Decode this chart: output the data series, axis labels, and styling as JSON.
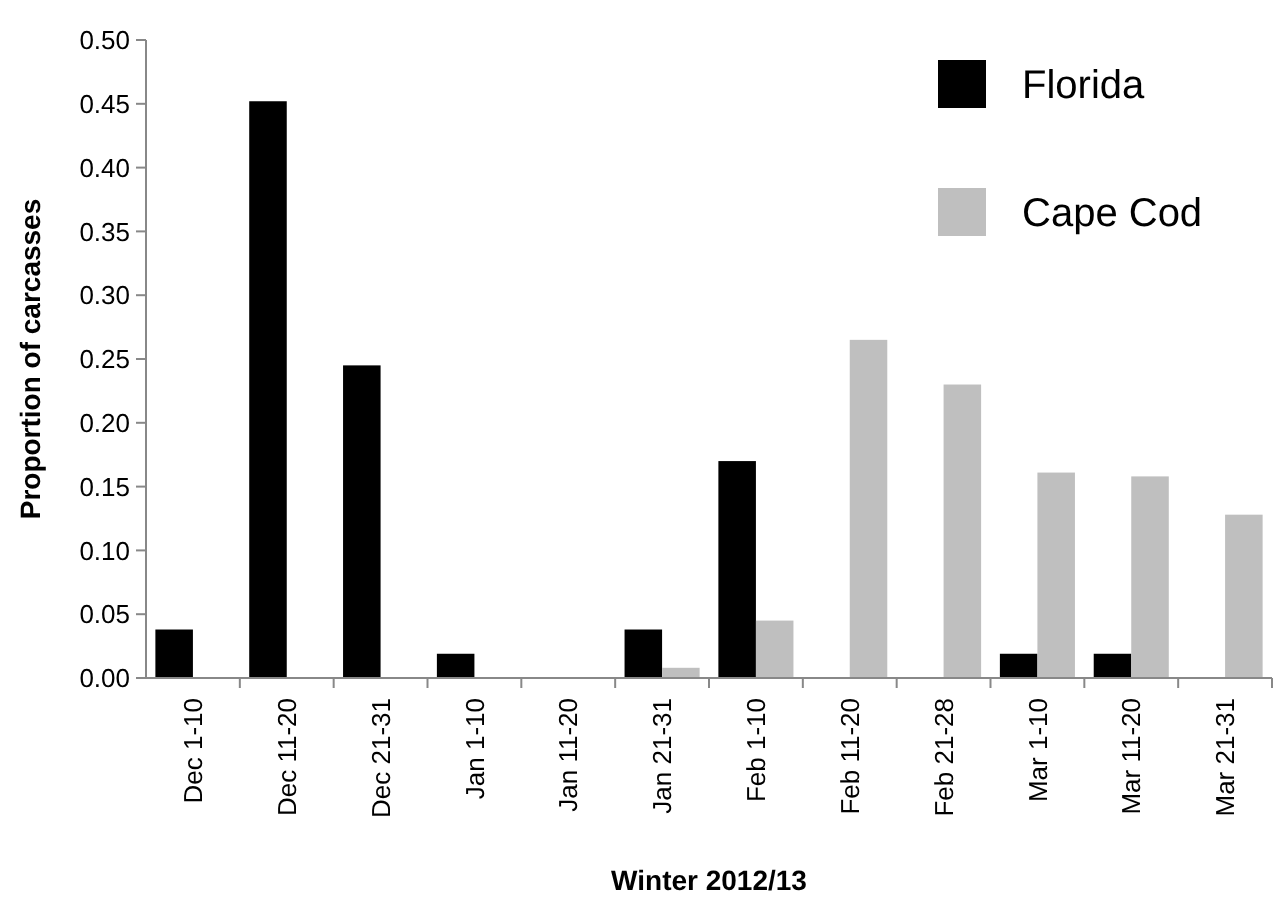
{
  "chart_data": {
    "type": "bar",
    "xlabel": "Winter 2012/13",
    "ylabel": "Proportion of carcasses",
    "categories": [
      "Dec 1-10",
      "Dec 11-20",
      "Dec 21-31",
      "Jan 1-10",
      "Jan 11-20",
      "Jan 21-31",
      "Feb 1-10",
      "Feb 11-20",
      "Feb 21-28",
      "Mar 1-10",
      "Mar 11-20",
      "Mar 21-31"
    ],
    "series": [
      {
        "name": "Florida",
        "color": "#000000",
        "values": [
          0.038,
          0.452,
          0.245,
          0.019,
          0,
          0.038,
          0.17,
          0,
          0,
          0.019,
          0.019,
          0
        ]
      },
      {
        "name": "Cape Cod",
        "color": "#bfbfbf",
        "values": [
          0,
          0,
          0,
          0,
          0,
          0.008,
          0.045,
          0.265,
          0.23,
          0.161,
          0.158,
          0.128
        ]
      }
    ],
    "ylim": [
      0,
      0.5
    ],
    "yticks": [
      {
        "value": 0,
        "label": "0.00"
      },
      {
        "value": 0.05,
        "label": "0.05"
      },
      {
        "value": 0.1,
        "label": "0.10"
      },
      {
        "value": 0.15,
        "label": "0.15"
      },
      {
        "value": 0.2,
        "label": "0.20"
      },
      {
        "value": 0.25,
        "label": "0.25"
      },
      {
        "value": 0.3,
        "label": "0.30"
      },
      {
        "value": 0.35,
        "label": "0.35"
      },
      {
        "value": 0.4,
        "label": "0.40"
      },
      {
        "value": 0.45,
        "label": "0.45"
      },
      {
        "value": 0.5,
        "label": "0.50"
      }
    ],
    "legend": "top right",
    "grid": false
  }
}
